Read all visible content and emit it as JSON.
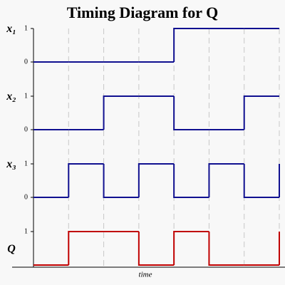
{
  "chart_data": {
    "type": "step",
    "title": "Timing Diagram for Q",
    "x_label": "time",
    "x": [
      0,
      1,
      2,
      3,
      4,
      5,
      6,
      7
    ],
    "xlim": [
      0,
      7
    ],
    "xticks": [
      0,
      1,
      2,
      3,
      4,
      5,
      6,
      7
    ],
    "grid": true,
    "ylim": [
      0,
      1
    ],
    "series": [
      {
        "name": "x₁",
        "color": "#101090",
        "values": [
          0,
          0,
          0,
          0,
          1,
          1,
          1,
          1
        ],
        "yticks": [
          0,
          1
        ]
      },
      {
        "name": "x₂",
        "color": "#101090",
        "values": [
          0,
          0,
          1,
          1,
          0,
          0,
          1,
          1
        ],
        "yticks": [
          0,
          1
        ]
      },
      {
        "name": "x₃",
        "color": "#101090",
        "values": [
          0,
          1,
          0,
          1,
          0,
          1,
          0,
          1
        ],
        "yticks": [
          0,
          1
        ]
      },
      {
        "name": "Q",
        "color": "#c00000",
        "values": [
          0,
          1,
          1,
          0,
          1,
          0,
          0,
          1
        ],
        "yticks": [
          1
        ]
      }
    ]
  }
}
